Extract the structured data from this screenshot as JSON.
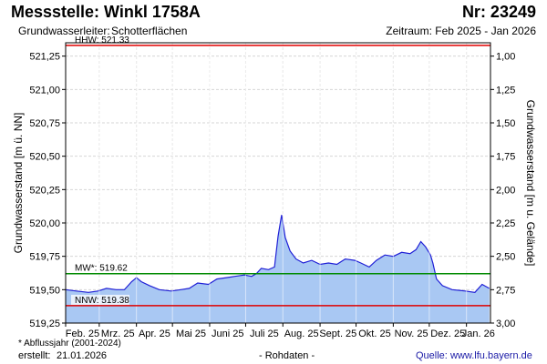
{
  "header": {
    "title": "Messstelle: Winkl 1758A",
    "number": "Nr: 23249",
    "aquifer_label": "Grundwasserleiter:",
    "aquifer_value": "Schotterflächen",
    "period": "Zeitraum: Feb 2025 - Jan 2026"
  },
  "footer": {
    "footnote": "* Abflussjahr (2001-2024)",
    "created_label": "erstellt:",
    "created_value": "21.01.2026",
    "rawdata": "- Rohdaten -",
    "source_label": "Quelle:",
    "source_value": "www.lfu.bayern.de"
  },
  "chart_data": {
    "type": "area",
    "ylabel": "Grundwasserstand [m ü. NN]",
    "y2label": "Grundwasserstand [m u. Gelände]",
    "ylim": [
      519.25,
      521.35
    ],
    "yticks": [
      "519,25",
      "519,50",
      "519,75",
      "520,00",
      "520,25",
      "520,50",
      "520,75",
      "521,00",
      "521,25"
    ],
    "y2lim": [
      0.9,
      3.0
    ],
    "y2ticks": [
      "1,00",
      "1,25",
      "1,50",
      "1,75",
      "2,00",
      "2,25",
      "2,50",
      "2,75",
      "3,00"
    ],
    "xlim": [
      "2025-02-01",
      "2026-01-21"
    ],
    "xticks": [
      "Feb. 25",
      "Mrz. 25",
      "Apr. 25",
      "Mai 25",
      "Juni 25",
      "Juli 25",
      "Aug. 25",
      "Sept. 25",
      "Okt. 25",
      "Nov. 25",
      "Dez. 25",
      "Jan. 26"
    ],
    "grid": true,
    "reference_lines": [
      {
        "label": "HHW: 521.33",
        "value": 521.33,
        "color": "#e00000"
      },
      {
        "label": "MW*: 519.62",
        "value": 519.62,
        "color": "#008a00"
      },
      {
        "label": "NNW: 519.38",
        "value": 519.38,
        "color": "#e00000"
      }
    ],
    "series": [
      {
        "line_color": "#1f1fd6",
        "fill_color": "#a9c8f3",
        "points": [
          [
            "2025-02-01",
            519.5
          ],
          [
            "2025-02-10",
            519.49
          ],
          [
            "2025-02-20",
            519.48
          ],
          [
            "2025-02-28",
            519.49
          ],
          [
            "2025-03-07",
            519.51
          ],
          [
            "2025-03-15",
            519.5
          ],
          [
            "2025-03-22",
            519.5
          ],
          [
            "2025-03-28",
            519.56
          ],
          [
            "2025-04-01",
            519.59
          ],
          [
            "2025-04-05",
            519.56
          ],
          [
            "2025-04-12",
            519.53
          ],
          [
            "2025-04-20",
            519.5
          ],
          [
            "2025-04-30",
            519.49
          ],
          [
            "2025-05-08",
            519.5
          ],
          [
            "2025-05-15",
            519.51
          ],
          [
            "2025-05-22",
            519.55
          ],
          [
            "2025-05-31",
            519.54
          ],
          [
            "2025-06-07",
            519.58
          ],
          [
            "2025-06-15",
            519.59
          ],
          [
            "2025-06-22",
            519.6
          ],
          [
            "2025-06-30",
            519.61
          ],
          [
            "2025-07-06",
            519.6
          ],
          [
            "2025-07-10",
            519.62
          ],
          [
            "2025-07-14",
            519.66
          ],
          [
            "2025-07-20",
            519.65
          ],
          [
            "2025-07-25",
            519.67
          ],
          [
            "2025-07-28",
            519.9
          ],
          [
            "2025-07-31",
            520.06
          ],
          [
            "2025-08-03",
            519.89
          ],
          [
            "2025-08-07",
            519.79
          ],
          [
            "2025-08-12",
            519.73
          ],
          [
            "2025-08-18",
            519.7
          ],
          [
            "2025-08-25",
            519.72
          ],
          [
            "2025-09-01",
            519.69
          ],
          [
            "2025-09-08",
            519.7
          ],
          [
            "2025-09-15",
            519.69
          ],
          [
            "2025-09-22",
            519.73
          ],
          [
            "2025-09-30",
            519.72
          ],
          [
            "2025-10-05",
            519.7
          ],
          [
            "2025-10-12",
            519.67
          ],
          [
            "2025-10-18",
            519.72
          ],
          [
            "2025-10-25",
            519.76
          ],
          [
            "2025-11-01",
            519.75
          ],
          [
            "2025-11-08",
            519.78
          ],
          [
            "2025-11-15",
            519.77
          ],
          [
            "2025-11-20",
            519.8
          ],
          [
            "2025-11-24",
            519.86
          ],
          [
            "2025-11-28",
            519.82
          ],
          [
            "2025-12-02",
            519.76
          ],
          [
            "2025-12-04",
            519.7
          ],
          [
            "2025-12-07",
            519.58
          ],
          [
            "2025-12-12",
            519.53
          ],
          [
            "2025-12-20",
            519.5
          ],
          [
            "2025-12-31",
            519.49
          ],
          [
            "2026-01-08",
            519.48
          ],
          [
            "2026-01-14",
            519.54
          ],
          [
            "2026-01-20",
            519.51
          ]
        ]
      }
    ]
  }
}
